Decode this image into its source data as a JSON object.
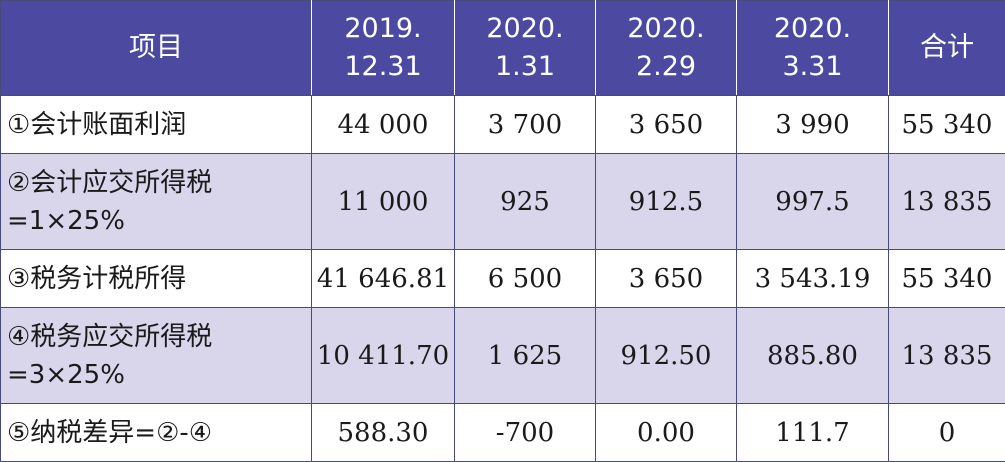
{
  "chart_data": {
    "type": "table",
    "columns": [
      "项目",
      "2019.12.31",
      "2020.1.31",
      "2020.2.29",
      "2020.3.31",
      "合计"
    ],
    "header": {
      "item": "项目",
      "col1": [
        "2019.",
        "12.31"
      ],
      "col2": [
        "2020.",
        "1.31"
      ],
      "col3": [
        "2020.",
        "2.29"
      ],
      "col4": [
        "2020.",
        "3.31"
      ],
      "total": "合计"
    },
    "rows": [
      {
        "label": [
          "①会计账面利润"
        ],
        "values": [
          "44 000",
          "3 700",
          "3 650",
          "3 990",
          "55 340"
        ]
      },
      {
        "label": [
          "②会计应交所得税",
          "=1×25%"
        ],
        "values": [
          "11 000",
          "925",
          "912.5",
          "997.5",
          "13 835"
        ]
      },
      {
        "label": [
          "③税务计税所得"
        ],
        "values": [
          "41 646.81",
          "6 500",
          "3 650",
          "3 543.19",
          "55 340"
        ]
      },
      {
        "label": [
          "④税务应交所得税",
          "=3×25%"
        ],
        "values": [
          "10 411.70",
          "1 625",
          "912.50",
          "885.80",
          "13 835"
        ]
      },
      {
        "label": [
          "⑤纳税差异=②-④"
        ],
        "values": [
          "588.30",
          "-700",
          "0.00",
          "111.7",
          "0"
        ]
      }
    ]
  },
  "colors": {
    "header_bg": "#4b4aa0",
    "shaded_row_bg": "#d9d6ec",
    "plain_row_bg": "#ffffff",
    "border": "#4a4a7a"
  }
}
